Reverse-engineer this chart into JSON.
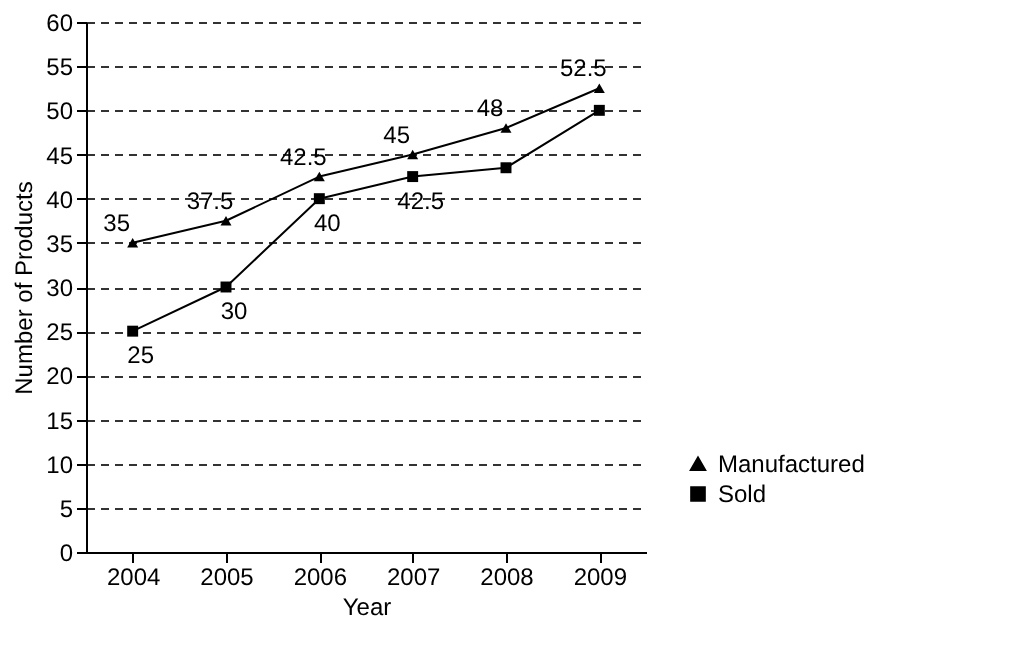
{
  "chart_data": {
    "type": "line",
    "xlabel": "Year",
    "ylabel": "Number of Products",
    "categories": [
      "2004",
      "2005",
      "2006",
      "2007",
      "2008",
      "2009"
    ],
    "series": [
      {
        "name": "Manufactured",
        "color": "#000000",
        "marker": "triangle",
        "values": [
          35,
          37.5,
          42.5,
          45,
          48,
          52.5
        ],
        "value_labels": [
          "35",
          "37.5",
          "42.5",
          "45",
          "48",
          "52.5"
        ]
      },
      {
        "name": "Sold",
        "color": "#000000",
        "marker": "square",
        "values": [
          25,
          30,
          40,
          42.5,
          43.5,
          50
        ],
        "value_labels": [
          "25",
          "30",
          "40",
          "42.5",
          null,
          null
        ]
      }
    ],
    "ylim": [
      0,
      60
    ],
    "yticks": [
      0,
      5,
      10,
      15,
      20,
      25,
      30,
      35,
      40,
      45,
      50,
      55,
      60
    ],
    "grid": "y",
    "legend": "bottom right",
    "line_style": "solid"
  }
}
